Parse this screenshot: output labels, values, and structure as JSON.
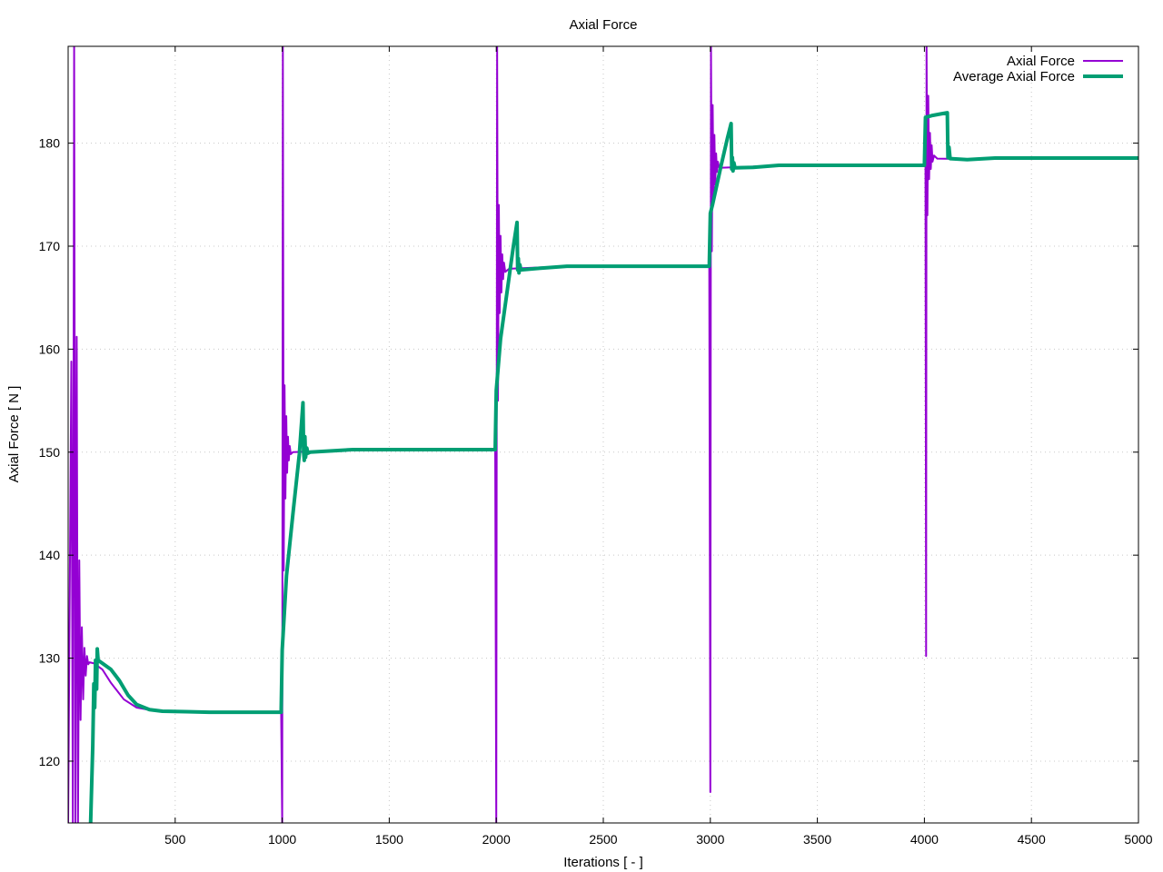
{
  "chart_data": {
    "type": "line",
    "title": "Axial Force",
    "xlabel": "Iterations [ - ]",
    "ylabel": "Axial Force [ N ]",
    "xlim": [
      0,
      5000
    ],
    "ylim": [
      114,
      189.4
    ],
    "xticks": [
      500,
      1000,
      1500,
      2000,
      2500,
      3000,
      3500,
      4000,
      4500,
      5000
    ],
    "yticks": [
      120,
      130,
      140,
      150,
      160,
      170,
      180
    ],
    "grid": true,
    "legend_position": "top-right",
    "series": [
      {
        "name": "Axial Force",
        "color": "#9400d3",
        "line_width": 2,
        "points": [
          [
            0,
            114
          ],
          [
            15,
            158.8
          ],
          [
            22,
            114
          ],
          [
            28,
            189.4
          ],
          [
            34,
            114
          ],
          [
            40,
            161.2
          ],
          [
            46,
            114
          ],
          [
            52,
            139.5
          ],
          [
            58,
            124
          ],
          [
            64,
            133
          ],
          [
            70,
            126
          ],
          [
            76,
            131
          ],
          [
            82,
            128.3
          ],
          [
            88,
            130.2
          ],
          [
            94,
            129.4
          ],
          [
            100,
            129.6
          ],
          [
            120,
            129.5
          ],
          [
            160,
            128.9
          ],
          [
            200,
            127.6
          ],
          [
            260,
            126.0
          ],
          [
            320,
            125.2
          ],
          [
            400,
            124.9
          ],
          [
            500,
            124.85
          ],
          [
            660,
            124.8
          ],
          [
            995,
            124.8
          ],
          [
            1000,
            114
          ],
          [
            1003,
            189.4
          ],
          [
            1007,
            138.5
          ],
          [
            1011,
            156.5
          ],
          [
            1015,
            145.5
          ],
          [
            1019,
            153.5
          ],
          [
            1023,
            148
          ],
          [
            1027,
            151.5
          ],
          [
            1031,
            149.2
          ],
          [
            1035,
            150.6
          ],
          [
            1040,
            149.8
          ],
          [
            1050,
            150.0
          ],
          [
            1200,
            150.1
          ],
          [
            1500,
            150.25
          ],
          [
            1995,
            150.25
          ],
          [
            2000,
            114
          ],
          [
            2004,
            189.4
          ],
          [
            2008,
            155
          ],
          [
            2012,
            174
          ],
          [
            2016,
            163.5
          ],
          [
            2020,
            171
          ],
          [
            2024,
            165.5
          ],
          [
            2028,
            169.2
          ],
          [
            2032,
            166.8
          ],
          [
            2036,
            168.4
          ],
          [
            2042,
            167.5
          ],
          [
            2060,
            167.8
          ],
          [
            2330,
            168.05
          ],
          [
            2995,
            168.05
          ],
          [
            3000,
            117
          ],
          [
            3003,
            189.4
          ],
          [
            3007,
            169.5
          ],
          [
            3011,
            183.7
          ],
          [
            3015,
            174.5
          ],
          [
            3019,
            180.8
          ],
          [
            3023,
            176
          ],
          [
            3027,
            179
          ],
          [
            3031,
            177.2
          ],
          [
            3035,
            178.2
          ],
          [
            3042,
            177.6
          ],
          [
            3300,
            177.8
          ],
          [
            4005,
            177.8
          ],
          [
            4008,
            130.2
          ],
          [
            4010,
            189.4
          ],
          [
            4014,
            173
          ],
          [
            4018,
            184.6
          ],
          [
            4022,
            176.5
          ],
          [
            4026,
            181
          ],
          [
            4030,
            177.5
          ],
          [
            4034,
            179.8
          ],
          [
            4038,
            178.2
          ],
          [
            4045,
            178.8
          ],
          [
            4060,
            178.5
          ],
          [
            4200,
            178.45
          ],
          [
            4330,
            178.55
          ],
          [
            5000,
            178.55
          ]
        ]
      },
      {
        "name": "Average Axial Force",
        "color": "#009e73",
        "line_width": 4,
        "points": [
          [
            105,
            114
          ],
          [
            115,
            121.5
          ],
          [
            120,
            127.5
          ],
          [
            124,
            125.2
          ],
          [
            128,
            129.8
          ],
          [
            133,
            127
          ],
          [
            136,
            130.9
          ],
          [
            140,
            129.8
          ],
          [
            160,
            129.5
          ],
          [
            200,
            128.9
          ],
          [
            240,
            127.8
          ],
          [
            280,
            126.4
          ],
          [
            320,
            125.5
          ],
          [
            380,
            125.0
          ],
          [
            440,
            124.85
          ],
          [
            550,
            124.8
          ],
          [
            660,
            124.75
          ],
          [
            995,
            124.75
          ],
          [
            1000,
            130.8
          ],
          [
            1020,
            138
          ],
          [
            1050,
            144
          ],
          [
            1080,
            149.8
          ],
          [
            1097,
            154.8
          ],
          [
            1100,
            150
          ],
          [
            1103,
            149.2
          ],
          [
            1106,
            151.5
          ],
          [
            1109,
            149.5
          ],
          [
            1115,
            150.4
          ],
          [
            1120,
            149.9
          ],
          [
            1130,
            150.0
          ],
          [
            1330,
            150.25
          ],
          [
            1995,
            150.25
          ],
          [
            2000,
            156
          ],
          [
            2020,
            161
          ],
          [
            2050,
            165.5
          ],
          [
            2080,
            170
          ],
          [
            2097,
            172.3
          ],
          [
            2100,
            167.7
          ],
          [
            2103,
            168.8
          ],
          [
            2106,
            167.4
          ],
          [
            2110,
            168.2
          ],
          [
            2115,
            167.7
          ],
          [
            2200,
            167.85
          ],
          [
            2330,
            168.05
          ],
          [
            2995,
            168.05
          ],
          [
            3000,
            173.2
          ],
          [
            3010,
            174
          ],
          [
            3050,
            177.8
          ],
          [
            3080,
            180.5
          ],
          [
            3097,
            181.9
          ],
          [
            3100,
            177.5
          ],
          [
            3103,
            178.6
          ],
          [
            3106,
            177.3
          ],
          [
            3110,
            178.1
          ],
          [
            3115,
            177.6
          ],
          [
            3200,
            177.65
          ],
          [
            3320,
            177.85
          ],
          [
            4000,
            177.85
          ],
          [
            4005,
            182.5
          ],
          [
            4040,
            182.7
          ],
          [
            4080,
            182.85
          ],
          [
            4107,
            182.95
          ],
          [
            4110,
            178.6
          ],
          [
            4115,
            179.6
          ],
          [
            4120,
            178.5
          ],
          [
            4200,
            178.4
          ],
          [
            4330,
            178.55
          ],
          [
            5000,
            178.55
          ]
        ]
      }
    ]
  }
}
